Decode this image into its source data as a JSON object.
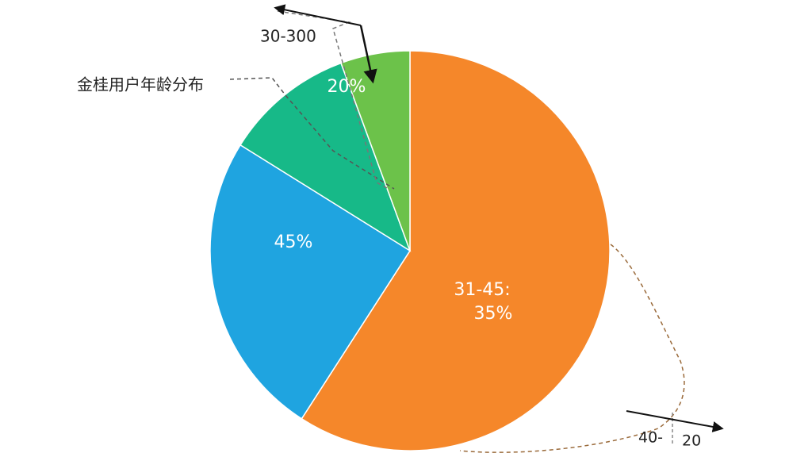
{
  "chart_data": {
    "type": "pie",
    "categories": [
      null,
      null,
      null,
      null
    ],
    "values": [
      59,
      24.7,
      10.5,
      5.6
    ],
    "colors": [
      "#f5872a",
      "#1fa4e0",
      "#17b988",
      "#6cc24a"
    ],
    "annotations": [
      "金桂用户年龄分布",
      "30-300",
      "20%",
      "45%",
      "31-45:",
      "35%",
      "40-",
      "20"
    ]
  }
}
